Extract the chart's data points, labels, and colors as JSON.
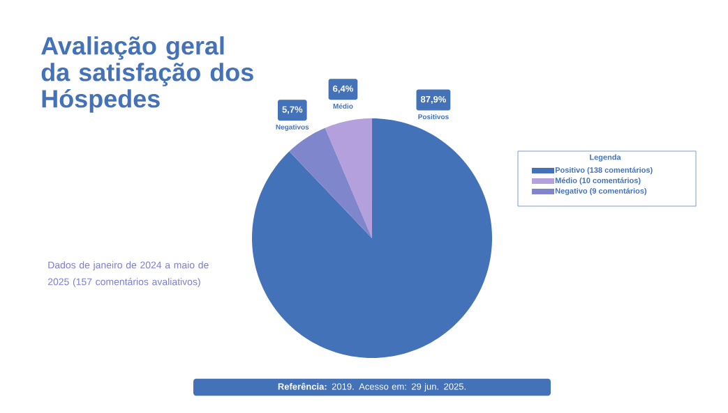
{
  "chart_data": {
    "type": "pie",
    "title": "Avaliação geral da satisfação dos Hóspedes",
    "categories": [
      "Positivo (138 comentários)",
      "Médio (10 comentários)",
      "Negativo (9 comentários)"
    ],
    "values": [
      87.9,
      6.4,
      5.7
    ],
    "colors": [
      "#4472b9",
      "#b4a0dc",
      "#7f86cc"
    ],
    "value_labels": [
      "87,9%",
      "6,4%",
      "5,7%"
    ],
    "legend": "right",
    "legend_title": "Legenda",
    "annotations": [
      "Dados de janeiro de 2024 a maio de 2025 (157 comentários avaliativos)",
      "**Referência:** 2019. Acesso em: 29 jun. 2025.",
      "Positivos",
      "Médio",
      "Negativos"
    ]
  }
}
